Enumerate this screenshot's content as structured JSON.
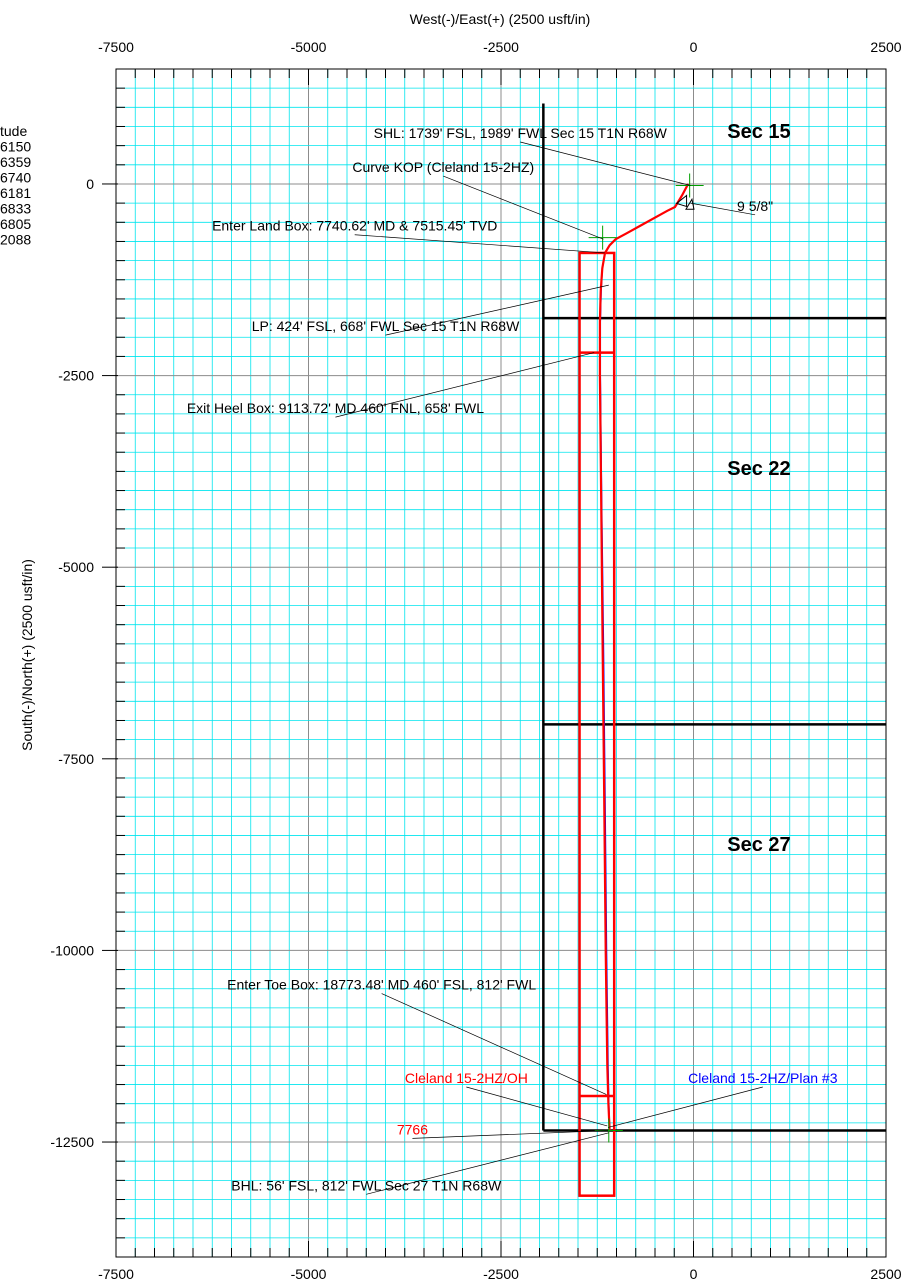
{
  "chart_data": {
    "type": "line",
    "xlabel": "West(-)/East(+) (2500 usft/in)",
    "ylabel": "South(-)/North(+) (2500 usft/in)",
    "xlim": [
      -7500,
      2500
    ],
    "ylim": [
      -14000,
      1500
    ],
    "x_ticks": [
      -7500,
      -5000,
      -2500,
      0,
      2500
    ],
    "y_ticks": [
      0,
      -2500,
      -5000,
      -7500,
      -10000,
      -12500
    ],
    "grid": true,
    "legend_fragment": [
      "tude",
      "6150",
      "6359",
      "6740",
      "6181",
      "6833",
      "6805",
      "2088"
    ],
    "sections": [
      {
        "label": "Sec 15",
        "x": 850,
        "y": 600
      },
      {
        "label": "Sec 22",
        "x": 850,
        "y": -3800
      },
      {
        "label": "Sec 27",
        "x": 850,
        "y": -8700
      }
    ],
    "section_lines": {
      "vertical_x": -1950,
      "vertical_from_y": 1050,
      "vertical_to_y": -12350,
      "horizontal_ys": [
        -1750,
        -7050,
        -12350
      ],
      "horizontal_to_x": 2500
    },
    "series": [
      {
        "name": "Cleland 15-2HZ/OH",
        "color": "#ff0000",
        "x": [
          -70,
          -150,
          -240,
          -340,
          -700,
          -880,
          -1010,
          -1090,
          -1150,
          -1185,
          -1205,
          -1215,
          -1215,
          -1200,
          -1180,
          -1160,
          -1140,
          -1120,
          -1105,
          -1090
        ],
        "y": [
          0,
          -150,
          -300,
          -350,
          -550,
          -650,
          -720,
          -800,
          -900,
          -1100,
          -1400,
          -1800,
          -2500,
          -4000,
          -6000,
          -8000,
          -10000,
          -11500,
          -12000,
          -12350
        ]
      },
      {
        "name": "Cleland 15-2HZ/Plan #3",
        "color": "#0000ff",
        "x": [
          -70,
          -150,
          -240,
          -340,
          -700,
          -880,
          -1010,
          -1090,
          -1150,
          -1185,
          -1200,
          -1210,
          -1210,
          -1195,
          -1170,
          -1150,
          -1130,
          -1110,
          -1100,
          -1090
        ],
        "y": [
          0,
          -150,
          -300,
          -350,
          -550,
          -650,
          -720,
          -800,
          -900,
          -1100,
          -1400,
          -1800,
          -2500,
          -4000,
          -6000,
          -8000,
          -10000,
          -11500,
          -12000,
          -12350
        ]
      }
    ],
    "boxes": [
      {
        "x0": -1480,
        "x1": -1030,
        "y0": -900,
        "y1": -13200
      },
      {
        "x0": -1480,
        "x1": -1030,
        "y0": -2200,
        "y1": -2200
      },
      {
        "x0": -1480,
        "x1": -1030,
        "y0": -11900,
        "y1": -11900
      }
    ],
    "annotations": [
      {
        "text": "SHL: 1739' FSL, 1989' FWL Sec 15 T1N R68W",
        "color": "#000000",
        "tx": -2250,
        "ty": 600,
        "anchor": "middle",
        "px": -40,
        "py": -20
      },
      {
        "text": "Curve KOP (Cleland 15-2HZ)",
        "color": "#000000",
        "tx": -3250,
        "ty": 155,
        "anchor": "middle",
        "px": -1170,
        "py": -720
      },
      {
        "text": "Enter Land Box: 7740.62' MD & 7515.45' TVD",
        "color": "#000000",
        "tx": -4400,
        "ty": -610,
        "anchor": "middle",
        "px": -1150,
        "py": -900
      },
      {
        "text": "LP: 424' FSL, 668' FWL Sec 15 T1N R68W",
        "color": "#000000",
        "tx": -4000,
        "ty": -1920,
        "anchor": "middle",
        "px": -1100,
        "py": -1320
      },
      {
        "text": "Exit Heel Box: 9113.72' MD 460' FNL, 658' FWL",
        "color": "#000000",
        "tx": -4650,
        "ty": -2990,
        "anchor": "middle",
        "px": -1290,
        "py": -2200
      },
      {
        "text": "Enter Toe Box: 18773.48' MD 460' FSL, 812' FWL",
        "color": "#000000",
        "tx": -4050,
        "ty": -10510,
        "anchor": "middle",
        "px": -1130,
        "py": -11880
      },
      {
        "text": "Cleland  15-2HZ/OH",
        "color": "#ff0000",
        "tx": -2950,
        "ty": -11730,
        "anchor": "middle",
        "px": -1120,
        "py": -12290
      },
      {
        "text": "Cleland 15-2HZ/Plan #3",
        "color": "#0000ff",
        "tx": 900,
        "ty": -11730,
        "anchor": "middle",
        "px": -1110,
        "py": -12310
      },
      {
        "text": "7766",
        "color": "#ff0000",
        "tx": -3650,
        "ty": -12400,
        "anchor": "middle",
        "px": -1110,
        "py": -12350
      },
      {
        "text": "BHL: 56' FSL, 812' FWL Sec 27 T1N R68W",
        "color": "#000000",
        "tx": -4250,
        "ty": -13130,
        "anchor": "middle",
        "px": -1100,
        "py": -12380
      },
      {
        "text": "9  5/8\"",
        "color": "#000000",
        "tx": 800,
        "ty": -350,
        "anchor": "middle",
        "px": -40,
        "py": -250
      }
    ]
  }
}
